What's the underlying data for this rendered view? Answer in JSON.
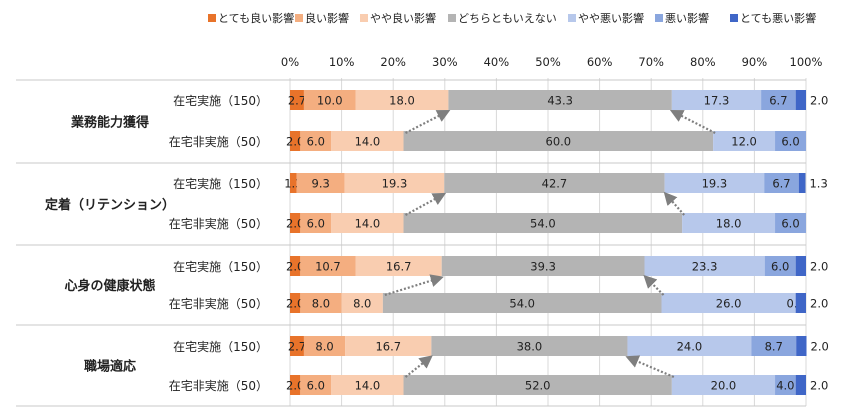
{
  "chart_data": {
    "type": "bar",
    "orientation": "horizontal",
    "stacked": "100%",
    "xlim": [
      0,
      100
    ],
    "x_ticks": [
      "0%",
      "10%",
      "20%",
      "30%",
      "40%",
      "50%",
      "60%",
      "70%",
      "80%",
      "90%",
      "100%"
    ],
    "legend_position": "top",
    "series": [
      {
        "name": "とても良い影響",
        "color": "#e8732a"
      },
      {
        "name": "良い影響",
        "color": "#f4ae80"
      },
      {
        "name": "やや良い影響",
        "color": "#f9cdb0"
      },
      {
        "name": "どちらともいえない",
        "color": "#b4b4b4"
      },
      {
        "name": "やや悪い影響",
        "color": "#b7c8eb"
      },
      {
        "name": "悪い影響",
        "color": "#8aa6de"
      },
      {
        "name": "とても悪い影響",
        "color": "#3f66c7"
      }
    ],
    "groups": [
      {
        "name": "業務能力獲得",
        "rows": [
          {
            "label": "在宅実施（150）",
            "values": [
              2.7,
              10.0,
              18.0,
              43.3,
              17.3,
              6.7,
              2.0
            ],
            "labels": [
              "2.7",
              "10.0",
              "18.0",
              "43.3",
              "17.3",
              "6.7",
              "2.0"
            ]
          },
          {
            "label": "在宅非実施（50）",
            "values": [
              2.0,
              6.0,
              14.0,
              60.0,
              12.0,
              6.0,
              0.0
            ],
            "labels": [
              "2.0",
              "6.0",
              "14.0",
              "60.0",
              "12.0",
              "6.0",
              ""
            ]
          }
        ]
      },
      {
        "name": "定着（リテンション）",
        "rows": [
          {
            "label": "在宅実施（150）",
            "values": [
              1.3,
              9.3,
              19.3,
              42.7,
              19.3,
              6.7,
              1.3
            ],
            "labels": [
              "1.3",
              "9.3",
              "19.3",
              "42.7",
              "19.3",
              "6.7",
              "1.3"
            ]
          },
          {
            "label": "在宅非実施（50）",
            "values": [
              2.0,
              6.0,
              14.0,
              54.0,
              18.0,
              6.0,
              0.0
            ],
            "labels": [
              "2.0",
              "6.0",
              "14.0",
              "54.0",
              "18.0",
              "6.0",
              ""
            ]
          }
        ]
      },
      {
        "name": "心身の健康状態",
        "rows": [
          {
            "label": "在宅実施（150）",
            "values": [
              2.0,
              10.7,
              16.7,
              39.3,
              23.3,
              6.0,
              2.0
            ],
            "labels": [
              "2.0",
              "10.7",
              "16.7",
              "39.3",
              "23.3",
              "6.0",
              "2.0"
            ]
          },
          {
            "label": "在宅非実施（50）",
            "values": [
              2.0,
              8.0,
              8.0,
              54.0,
              26.0,
              0.0,
              2.0
            ],
            "labels": [
              "2.0",
              "8.0",
              "8.0",
              "54.0",
              "26.0",
              "0.0",
              "2.0"
            ]
          }
        ]
      },
      {
        "name": "職場適応",
        "rows": [
          {
            "label": "在宅実施（150）",
            "values": [
              2.7,
              8.0,
              16.7,
              38.0,
              24.0,
              8.7,
              2.0
            ],
            "labels": [
              "2.7",
              "8.0",
              "16.7",
              "38.0",
              "24.0",
              "8.7",
              "2.0"
            ]
          },
          {
            "label": "在宅非実施（50）",
            "values": [
              2.0,
              6.0,
              14.0,
              52.0,
              20.0,
              4.0,
              2.0
            ],
            "labels": [
              "2.0",
              "6.0",
              "14.0",
              "52.0",
              "20.0",
              "4.0",
              "2.0"
            ]
          }
        ]
      }
    ]
  }
}
